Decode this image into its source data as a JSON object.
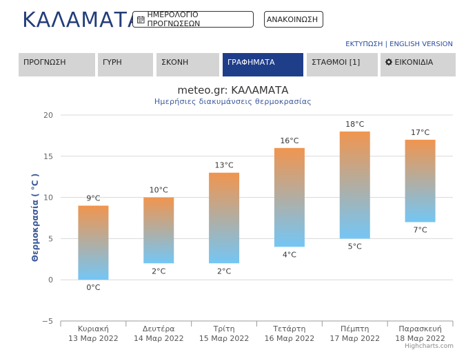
{
  "header": {
    "city": "ΚΑΛΑΜΑΤΑ",
    "calendar_button": "ΗΜΕΡΟΛΟΓΙΟ ΠΡΟΓΝΩΣΕΩΝ",
    "announcement_button": "ΑΝΑΚΟΙΝΩΣΗ",
    "print_link": "ΕΚΤΥΠΩΣΗ",
    "separator": "|",
    "english_link": "ENGLISH VERSION"
  },
  "tabs": [
    {
      "label": "ΠΡΟΓΝΩΣΗ"
    },
    {
      "label": "ΓΥΡΗ"
    },
    {
      "label": "ΣΚΟΝΗ"
    },
    {
      "label": "ΓΡΑΦΗΜΑΤΑ",
      "active": true
    },
    {
      "label": "ΣΤΑΘΜΟΙ [1]"
    },
    {
      "label": "ΕΙΚΟΝΙΔΙΑ",
      "icon": "gear-icon"
    }
  ],
  "credits": "Highcharts.com",
  "chart_data": {
    "type": "columnrange",
    "title": "meteo.gr: ΚΑΛΑΜΑΤΑ",
    "subtitle": "Ημερήσιες διακυμάνσεις θερμοκρασίας",
    "ylabel": "Θερμοκρασία ( °C )",
    "ylim": [
      -5,
      20
    ],
    "yticks": [
      -5,
      0,
      5,
      10,
      15,
      20
    ],
    "grid": true,
    "unit": "°C",
    "categories": [
      {
        "day": "Κυριακή",
        "date": "13 Μαρ 2022"
      },
      {
        "day": "Δευτέρα",
        "date": "14 Μαρ 2022"
      },
      {
        "day": "Τρίτη",
        "date": "15 Μαρ 2022"
      },
      {
        "day": "Τετάρτη",
        "date": "16 Μαρ 2022"
      },
      {
        "day": "Πέμπτη",
        "date": "17 Μαρ 2022"
      },
      {
        "day": "Παρασκευή",
        "date": "18 Μαρ 2022"
      }
    ],
    "low": [
      0,
      2,
      2,
      4,
      5,
      7
    ],
    "high": [
      9,
      10,
      13,
      16,
      18,
      17
    ],
    "colors": {
      "top": "#f0954f",
      "bottom": "#74c6f5",
      "grid": "#d8d8d8",
      "axis": "#999999"
    }
  }
}
